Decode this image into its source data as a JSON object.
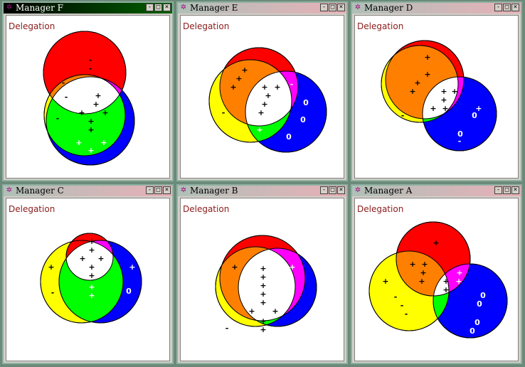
{
  "label_text": "Delegation",
  "colors": {
    "red": "#ff0000",
    "yellow": "#ffff00",
    "blue": "#0000ff",
    "orange": "#ff8000",
    "green": "#00ff00",
    "magenta": "#ff00ff",
    "white": "#ffffff"
  },
  "windows": [
    {
      "key": "f",
      "title": "Manager F",
      "active": true
    },
    {
      "key": "e",
      "title": "Manager E",
      "active": false
    },
    {
      "key": "d",
      "title": "Manager D",
      "active": false
    },
    {
      "key": "c",
      "title": "Manager C",
      "active": false
    },
    {
      "key": "b",
      "title": "Manager B",
      "active": false
    },
    {
      "key": "a",
      "title": "Manager A",
      "active": false
    }
  ],
  "title_buttons": {
    "minimize": "-",
    "maximize": "□",
    "close": "×"
  },
  "diagram_symbols": {
    "plus": "+",
    "minus": "-",
    "zero": "0"
  }
}
